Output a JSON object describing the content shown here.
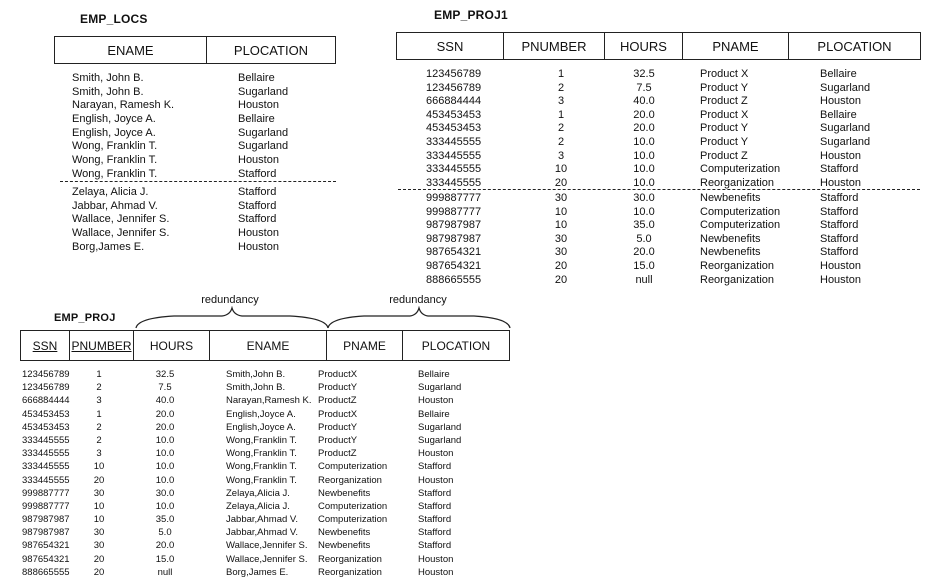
{
  "emp_locs": {
    "title": "EMP_LOCS",
    "headers": [
      "ENAME",
      "PLOCATION"
    ],
    "rows_top": [
      [
        "Smith, John B.",
        "Bellaire"
      ],
      [
        "Smith, John B.",
        "Sugarland"
      ],
      [
        "Narayan, Ramesh K.",
        "Houston"
      ],
      [
        "English, Joyce A.",
        "Bellaire"
      ],
      [
        "English, Joyce A.",
        "Sugarland"
      ],
      [
        "Wong, Franklin T.",
        "Sugarland"
      ],
      [
        "Wong, Franklin T.",
        "Houston"
      ],
      [
        "Wong, Franklin T.",
        "Stafford"
      ]
    ],
    "rows_bottom": [
      [
        "Zelaya, Alicia J.",
        "Stafford"
      ],
      [
        "Jabbar, Ahmad V.",
        "Stafford"
      ],
      [
        "Wallace, Jennifer S.",
        "Stafford"
      ],
      [
        "Wallace, Jennifer S.",
        "Houston"
      ],
      [
        "Borg,James E.",
        "Houston"
      ]
    ]
  },
  "emp_proj1": {
    "title": "EMP_PROJ1",
    "headers": [
      "SSN",
      "PNUMBER",
      "HOURS",
      "PNAME",
      "PLOCATION"
    ],
    "rows_top": [
      [
        "123456789",
        "1",
        "32.5",
        "Product X",
        "Bellaire"
      ],
      [
        "123456789",
        "2",
        "7.5",
        "Product Y",
        "Sugarland"
      ],
      [
        "666884444",
        "3",
        "40.0",
        "Product Z",
        "Houston"
      ],
      [
        "453453453",
        "1",
        "20.0",
        "Product X",
        "Bellaire"
      ],
      [
        "453453453",
        "2",
        "20.0",
        "Product Y",
        "Sugarland"
      ],
      [
        "333445555",
        "2",
        "10.0",
        "Product Y",
        "Sugarland"
      ],
      [
        "333445555",
        "3",
        "10.0",
        "Product Z",
        "Houston"
      ],
      [
        "333445555",
        "10",
        "10.0",
        "Computerization",
        "Stafford"
      ],
      [
        "333445555",
        "20",
        "10.0",
        "Reorganization",
        "Houston"
      ]
    ],
    "rows_bottom": [
      [
        "999887777",
        "30",
        "30.0",
        "Newbenefits",
        "Stafford"
      ],
      [
        "999887777",
        "10",
        "10.0",
        "Computerization",
        "Stafford"
      ],
      [
        "987987987",
        "10",
        "35.0",
        "Computerization",
        "Stafford"
      ],
      [
        "987987987",
        "30",
        "5.0",
        "Newbenefits",
        "Stafford"
      ],
      [
        "987654321",
        "30",
        "20.0",
        "Newbenefits",
        "Stafford"
      ],
      [
        "987654321",
        "20",
        "15.0",
        "Reorganization",
        "Houston"
      ],
      [
        "888665555",
        "20",
        "null",
        "Reorganization",
        "Houston"
      ]
    ]
  },
  "emp_proj": {
    "title": "EMP_PROJ",
    "redundancy_labels": [
      "redundancy",
      "redundancy"
    ],
    "headers": [
      "SSN",
      "PNUMBER",
      "HOURS",
      "ENAME",
      "PNAME",
      "PLOCATION"
    ],
    "rows": [
      [
        "123456789",
        "1",
        "32.5",
        "Smith,John B.",
        "ProductX",
        "Bellaire"
      ],
      [
        "123456789",
        "2",
        "7.5",
        "Smith,John B.",
        "ProductY",
        "Sugarland"
      ],
      [
        "666884444",
        "3",
        "40.0",
        "Narayan,Ramesh K.",
        "ProductZ",
        "Houston"
      ],
      [
        "453453453",
        "1",
        "20.0",
        "English,Joyce A.",
        "ProductX",
        "Bellaire"
      ],
      [
        "453453453",
        "2",
        "20.0",
        "English,Joyce A.",
        "ProductY",
        "Sugarland"
      ],
      [
        "333445555",
        "2",
        "10.0",
        "Wong,Franklin T.",
        "ProductY",
        "Sugarland"
      ],
      [
        "333445555",
        "3",
        "10.0",
        "Wong,Franklin T.",
        "ProductZ",
        "Houston"
      ],
      [
        "333445555",
        "10",
        "10.0",
        "Wong,Franklin T.",
        "Computerization",
        "Stafford"
      ],
      [
        "333445555",
        "20",
        "10.0",
        "Wong,Franklin T.",
        "Reorganization",
        "Houston"
      ],
      [
        "999887777",
        "30",
        "30.0",
        "Zelaya,Alicia J.",
        "Newbenefits",
        "Stafford"
      ],
      [
        "999887777",
        "10",
        "10.0",
        "Zelaya,Alicia J.",
        "Computerization",
        "Stafford"
      ],
      [
        "987987987",
        "10",
        "35.0",
        "Jabbar,Ahmad V.",
        "Computerization",
        "Stafford"
      ],
      [
        "987987987",
        "30",
        "5.0",
        "Jabbar,Ahmad V.",
        "Newbenefits",
        "Stafford"
      ],
      [
        "987654321",
        "30",
        "20.0",
        "Wallace,Jennifer S.",
        "Newbenefits",
        "Stafford"
      ],
      [
        "987654321",
        "20",
        "15.0",
        "Wallace,Jennifer S.",
        "Reorganization",
        "Houston"
      ],
      [
        "888665555",
        "20",
        "null",
        "Borg,James E.",
        "Reorganization",
        "Houston"
      ]
    ]
  }
}
